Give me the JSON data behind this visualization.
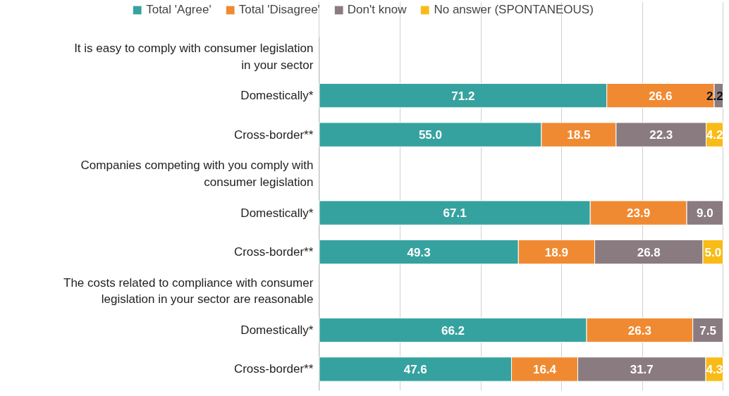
{
  "chart_data": {
    "type": "bar",
    "orientation": "horizontal",
    "stacked": true,
    "categories": [
      "It is easy to comply with consumer legislation in your sector",
      "Domestically*",
      "Cross-border**",
      "Companies competing with you comply with consumer legislation",
      "Domestically*",
      "Cross-border**",
      "The costs related to compliance with consumer legislation in your sector are reasonable",
      "Domestically*",
      "Cross-border**"
    ],
    "series": [
      {
        "name": "Total 'Agree'",
        "color": "#36a29f",
        "values": [
          null,
          71.2,
          55.0,
          null,
          67.1,
          49.3,
          null,
          66.2,
          47.6
        ],
        "value_labels": [
          null,
          "71.2",
          "55.0",
          null,
          "67.1",
          "49.3",
          null,
          "66.2",
          "47.6"
        ]
      },
      {
        "name": "Total 'Disagree'",
        "color": "#f08a32",
        "values": [
          null,
          26.6,
          18.5,
          null,
          23.9,
          18.9,
          null,
          26.3,
          16.4
        ],
        "value_labels": [
          null,
          "26.6",
          "18.5",
          null,
          "23.9",
          "18.9",
          null,
          "26.3",
          "16.4"
        ]
      },
      {
        "name": "Don't know",
        "color": "#8a7b80",
        "values": [
          null,
          2.2,
          22.3,
          null,
          9.0,
          26.8,
          null,
          7.5,
          31.7
        ],
        "value_labels": [
          null,
          "2.2",
          "22.3",
          null,
          "9.0",
          "26.8",
          null,
          "7.5",
          "31.7"
        ]
      },
      {
        "name": "No answer (SPONTANEOUS)",
        "color": "#f8bb17",
        "values": [
          null,
          null,
          4.2,
          null,
          null,
          5.0,
          null,
          null,
          4.3
        ],
        "value_labels": [
          null,
          null,
          "4.2",
          null,
          null,
          "5.0",
          null,
          null,
          "4.3"
        ]
      }
    ],
    "xlim": [
      0,
      100
    ],
    "xticks": [
      {
        "value": 0,
        "label": null
      },
      {
        "value": 20,
        "label": null
      },
      {
        "value": 40,
        "label": null
      },
      {
        "value": 60,
        "label": null
      },
      {
        "value": 80,
        "label": null
      },
      {
        "value": 100,
        "label": null
      }
    ],
    "tick_labels": "y",
    "grid": "x",
    "legend": "top"
  }
}
